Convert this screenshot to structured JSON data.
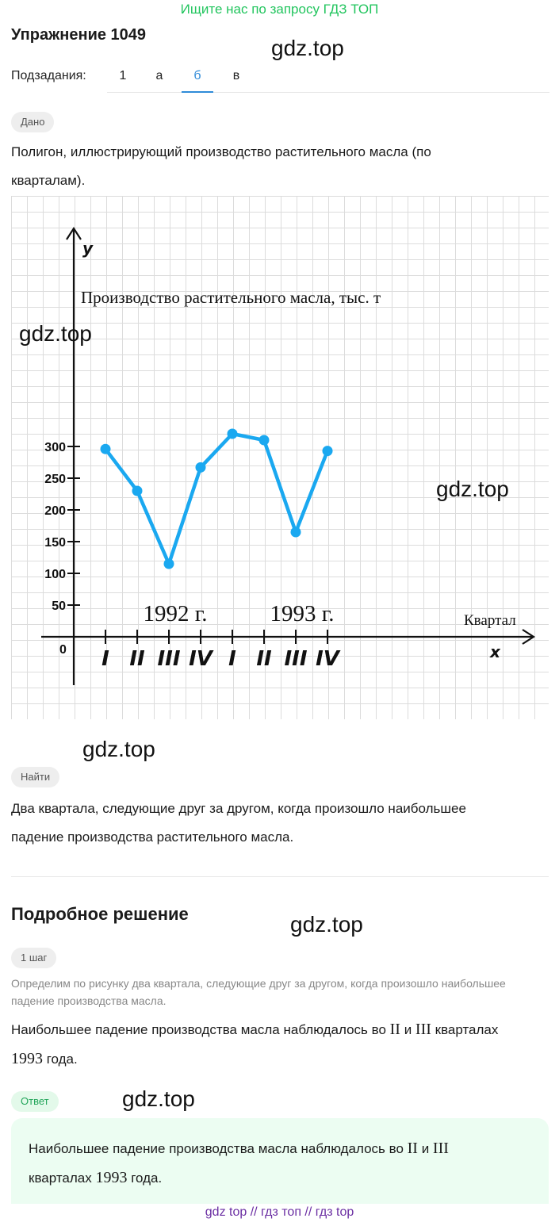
{
  "promo_text": "Ищите нас по запросу ГДЗ ТОП",
  "exercise_title": "Упражнение 1049",
  "watermark": "gdz.top",
  "subtasks": {
    "label": "Подзадания:",
    "items": [
      "1",
      "а",
      "б",
      "в"
    ],
    "active_index": 2
  },
  "given": {
    "badge": "Дано",
    "text_line1": "Полигон, иллюстрирующий производство растительного масла (по",
    "text_line2": "кварталам)."
  },
  "chart_data": {
    "type": "line",
    "title": "Производство растительного масла, тыс. т",
    "xlabel": "Квартал",
    "ylabel": "y",
    "x_axis_letter": "x",
    "origin_label": "0",
    "categories": [
      "I",
      "II",
      "III",
      "IV",
      "I",
      "II",
      "III",
      "IV"
    ],
    "year_labels": [
      "1992 г.",
      "1993 г."
    ],
    "y_ticks": [
      50,
      100,
      150,
      200,
      250,
      300
    ],
    "ylim": [
      0,
      400
    ],
    "grid": true,
    "series": [
      {
        "values": [
          296,
          230,
          115,
          267,
          320,
          310,
          165,
          293
        ]
      }
    ],
    "line_color": "#1aa8f0"
  },
  "find": {
    "badge": "Найти",
    "text_line1": "Два квартала, следующие друг за другом, когда произошло наибольшее",
    "text_line2": "падение производства растительного масла."
  },
  "solution": {
    "heading": "Подробное решение",
    "step_badge": "1 шаг",
    "note": "Определим по рисунку два квартала, следующие друг за другом, когда произошло наибольшее падение производства масла.",
    "result_part1": "Наибольшее падение производства масла наблюдалось во ",
    "roman_a": "II",
    "conj": " и ",
    "roman_b": "III",
    "result_part2": " кварталах",
    "year": "1993",
    "result_part3": " года."
  },
  "answer": {
    "badge": "Ответ",
    "part1": "Наибольшее падение производства масла наблюдалось во ",
    "roman_a": "II",
    "conj": " и ",
    "roman_b": "III",
    "part2": "кварталах ",
    "year": "1993",
    "part3": " года."
  },
  "footer": "gdz top  //  гдз топ  //  гдз top"
}
